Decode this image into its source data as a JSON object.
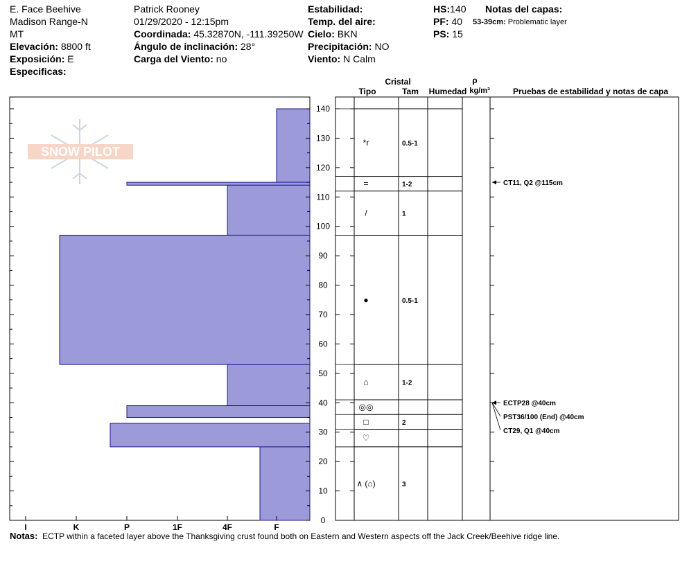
{
  "header": {
    "location": "E. Face Beehive",
    "range": "Madison Range-N",
    "state": "MT",
    "elevation_label": "Elevación:",
    "elevation": "8800 ft",
    "aspect_label": "Exposición:",
    "aspect": "E",
    "specifics_label": "Especificas:",
    "observer": "Patrick Rooney",
    "datetime": "01/29/2020 - 12:15pm",
    "coord_label": "Coordinada:",
    "coord": "45.32870N, -111.39250W",
    "incline_label": "Ángulo de inclinación:",
    "incline": "28°",
    "windload_label": "Carga del Viento:",
    "windload": "no",
    "stability_label": "Estabilidad:",
    "airtemp_label": "Temp. del aire:",
    "sky_label": "Cielo:",
    "sky": "BKN",
    "precip_label": "Precipitación:",
    "precip": "NO",
    "wind_label": "Viento:",
    "wind": "N Calm",
    "hs_label": "HS:",
    "hs": "140",
    "pf_label": "PF:",
    "pf": "40",
    "ps_label": "PS:",
    "ps": "15",
    "layer_notes_label": "Notas del capas:",
    "layer_note_range": "53-39cm:",
    "layer_note_text": "Problematic layer"
  },
  "logo_text": "SNOW PILOT",
  "columns": {
    "crystal": "Cristal",
    "type": "Tipo",
    "size": "Tam",
    "moisture": "Humedad",
    "rho": "ρ",
    "density_unit": "kg/m³",
    "tests": "Pruebas de estabilidad y notas de capa"
  },
  "chart_data": {
    "type": "bar",
    "ylabel": "",
    "ylim": [
      0,
      140
    ],
    "y_ticks": [
      0,
      10,
      20,
      30,
      40,
      50,
      60,
      70,
      80,
      90,
      100,
      110,
      120,
      130,
      140
    ],
    "hardness_scale": [
      "I",
      "K",
      "P",
      "1F",
      "4F",
      "F"
    ],
    "hardness_profile": [
      {
        "top": 140,
        "bottom": 115,
        "hardness": "F"
      },
      {
        "top": 115,
        "bottom": 114,
        "hardness": "P"
      },
      {
        "top": 114,
        "bottom": 97,
        "hardness": "4F"
      },
      {
        "top": 97,
        "bottom": 53,
        "hardness": "K+"
      },
      {
        "top": 53,
        "bottom": 39,
        "hardness": "4F"
      },
      {
        "top": 39,
        "bottom": 35,
        "hardness": "P"
      },
      {
        "top": 33,
        "bottom": 25,
        "hardness": "P+"
      },
      {
        "top": 25,
        "bottom": 0,
        "hardness": "F+"
      }
    ],
    "layers": [
      {
        "top": 140,
        "bottom": 117,
        "grain": "*r",
        "size": "0.5-1"
      },
      {
        "top": 117,
        "bottom": 112,
        "grain": "=",
        "size": "1-2"
      },
      {
        "top": 112,
        "bottom": 97,
        "grain": "/",
        "size": "1"
      },
      {
        "top": 97,
        "bottom": 53,
        "grain": "●",
        "size": "0.5-1"
      },
      {
        "top": 53,
        "bottom": 41,
        "grain": "⌂",
        "size": "1-2"
      },
      {
        "top": 41,
        "bottom": 36,
        "grain": "◎◎",
        "size": ""
      },
      {
        "top": 36,
        "bottom": 31,
        "grain": "□",
        "size": "2"
      },
      {
        "top": 31,
        "bottom": 25,
        "grain": "♡",
        "size": ""
      },
      {
        "top": 25,
        "bottom": 0,
        "grain": "∧ (⌂)",
        "size": "3"
      }
    ],
    "tests": [
      {
        "depth": 115,
        "text": "CT11, Q2 @115cm"
      },
      {
        "depth": 40,
        "text": "ECTP28 @40cm"
      },
      {
        "depth": 40,
        "text": "PST36/100 (End) @40cm"
      },
      {
        "depth": 40,
        "text": "CT29, Q1 @40cm"
      }
    ]
  },
  "notes_label": "Notas:",
  "notes": "ECTP within a faceted layer above the Thanksgiving crust found both on Eastern and Western aspects off the Jack Creek/Beehive ridge line."
}
